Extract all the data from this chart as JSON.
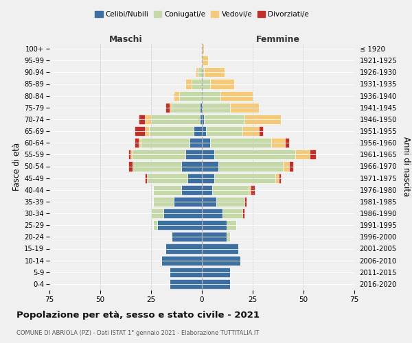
{
  "age_groups": [
    "0-4",
    "5-9",
    "10-14",
    "15-19",
    "20-24",
    "25-29",
    "30-34",
    "35-39",
    "40-44",
    "45-49",
    "50-54",
    "55-59",
    "60-64",
    "65-69",
    "70-74",
    "75-79",
    "80-84",
    "85-89",
    "90-94",
    "95-99",
    "100+"
  ],
  "birth_years": [
    "2016-2020",
    "2011-2015",
    "2006-2010",
    "2001-2005",
    "1996-2000",
    "1991-1995",
    "1986-1990",
    "1981-1985",
    "1976-1980",
    "1971-1975",
    "1966-1970",
    "1961-1965",
    "1956-1960",
    "1951-1955",
    "1946-1950",
    "1941-1945",
    "1936-1940",
    "1931-1935",
    "1926-1930",
    "1921-1925",
    "≤ 1920"
  ],
  "males": {
    "celibi": [
      16,
      16,
      20,
      18,
      15,
      22,
      19,
      14,
      10,
      7,
      10,
      8,
      6,
      4,
      1,
      1,
      0,
      0,
      0,
      0,
      0
    ],
    "coniugati": [
      0,
      0,
      0,
      0,
      0,
      2,
      6,
      10,
      14,
      20,
      24,
      26,
      24,
      22,
      24,
      14,
      11,
      5,
      2,
      0,
      0
    ],
    "vedovi": [
      0,
      0,
      0,
      0,
      0,
      0,
      0,
      0,
      0,
      0,
      0,
      1,
      1,
      2,
      3,
      1,
      3,
      3,
      1,
      0,
      0
    ],
    "divorziati": [
      0,
      0,
      0,
      0,
      0,
      0,
      0,
      0,
      0,
      1,
      2,
      1,
      2,
      5,
      3,
      2,
      0,
      0,
      0,
      0,
      0
    ]
  },
  "females": {
    "nubili": [
      14,
      14,
      19,
      18,
      12,
      12,
      10,
      7,
      5,
      6,
      8,
      6,
      4,
      2,
      1,
      0,
      0,
      0,
      0,
      0,
      0
    ],
    "coniugate": [
      0,
      0,
      0,
      0,
      2,
      5,
      10,
      14,
      18,
      30,
      32,
      40,
      30,
      18,
      20,
      14,
      9,
      4,
      1,
      0,
      0
    ],
    "vedove": [
      0,
      0,
      0,
      0,
      0,
      0,
      0,
      0,
      1,
      2,
      3,
      7,
      7,
      8,
      18,
      14,
      16,
      12,
      10,
      3,
      1
    ],
    "divorziate": [
      0,
      0,
      0,
      0,
      0,
      0,
      1,
      1,
      2,
      1,
      2,
      3,
      2,
      2,
      0,
      0,
      0,
      0,
      0,
      0,
      0
    ]
  },
  "xlim": 75,
  "colors": {
    "celibi": "#3d6fa0",
    "coniugati": "#c5d8a8",
    "vedovi": "#f5c97a",
    "divorziati": "#c0302a"
  },
  "title": "Popolazione per età, sesso e stato civile - 2021",
  "subtitle": "COMUNE DI ABRIOLA (PZ) - Dati ISTAT 1° gennaio 2021 - Elaborazione TUTTITALIA.IT",
  "ylabel": "Fasce di età",
  "ylabel_right": "Anni di nascita",
  "bg_color": "#f0f0f0",
  "bar_edge_color": "#ffffff"
}
